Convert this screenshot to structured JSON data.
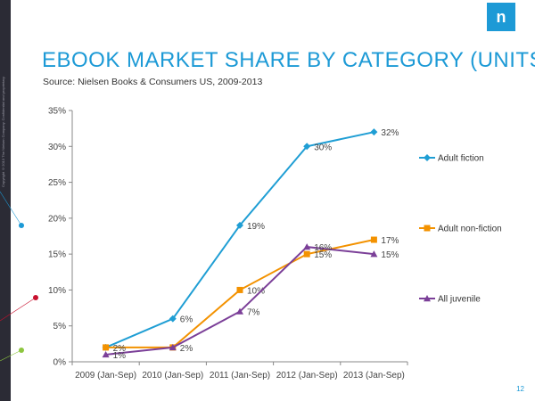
{
  "slide": {
    "title": "EBOOK MARKET SHARE BY CATEGORY (UNITS)",
    "source": "Source: Nielsen Books & Consumers US, 2009-2013",
    "page_number": "12",
    "copyright": "Copyright ©2013 The Nielsen Company. Confidential and proprietary.",
    "logo_letter": "n",
    "accent_color": "#1d9ad6"
  },
  "chart_data": {
    "type": "line",
    "x": [
      "2009 (Jan-Sep)",
      "2010 (Jan-Sep)",
      "2011 (Jan-Sep)",
      "2012 (Jan-Sep)",
      "2013 (Jan-Sep)"
    ],
    "y_ticks": [
      "0%",
      "5%",
      "10%",
      "15%",
      "20%",
      "25%",
      "30%",
      "35%"
    ],
    "ylim": [
      0,
      35
    ],
    "grid": false,
    "legend_position": "right",
    "series": [
      {
        "name": "Adult fiction",
        "values": [
          2,
          6,
          19,
          30,
          32
        ],
        "labels": [
          "",
          "6%",
          "19%",
          "30%",
          "32%"
        ],
        "color": "#1f9ed4",
        "marker": "diamond"
      },
      {
        "name": "Adult non-fiction",
        "values": [
          2,
          2,
          10,
          15,
          17
        ],
        "labels": [
          "2%",
          "2%",
          "10%",
          "15%",
          "17%"
        ],
        "color": "#f39200",
        "marker": "square"
      },
      {
        "name": "All juvenile",
        "values": [
          1,
          2,
          7,
          16,
          15
        ],
        "labels": [
          "1%",
          "",
          "7%",
          "16%",
          "15%"
        ],
        "color": "#7b3f98",
        "marker": "triangle"
      }
    ]
  }
}
